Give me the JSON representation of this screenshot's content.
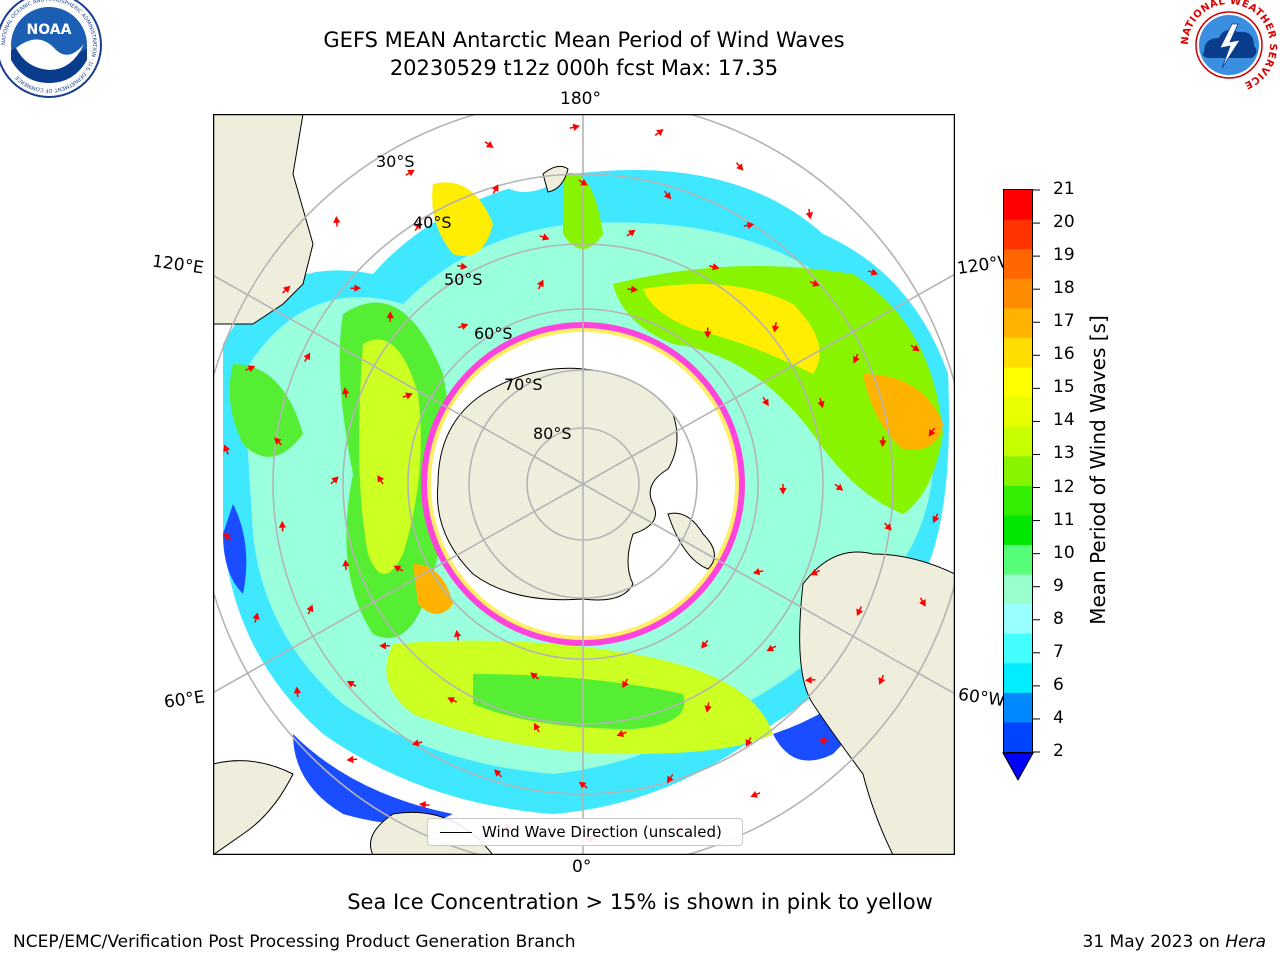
{
  "title": {
    "line1": "GEFS MEAN Antarctic Mean Period of Wind Waves",
    "line2": "20230529 t12z 000h fcst   Max: 17.35"
  },
  "logos": {
    "left": "NOAA",
    "left_ring_text": "NATIONAL OCEANIC AND ATMOSPHERIC ADMINISTRATION · U.S. DEPARTMENT OF COMMERCE",
    "right_ring_text": "NATIONAL WEATHER SERVICE"
  },
  "map": {
    "longitude_labels": {
      "top": "180°",
      "bottom": "0°",
      "upper_left": "120°E",
      "upper_right": "120°W",
      "lower_left": "60°E",
      "lower_right": "60°W"
    },
    "latitude_labels": [
      "30°S",
      "40°S",
      "50°S",
      "60°S",
      "70°S",
      "80°S"
    ],
    "colors": {
      "land": "#efeddc",
      "sea_ice": "#ff44dd",
      "ice_edge": "#ffee00",
      "arrow": "#ff0000",
      "grid": "#b4b4b4"
    }
  },
  "legend": {
    "label": "Wind Wave Direction (unscaled)"
  },
  "colorbar": {
    "label": "Mean Period of Wind Waves [s]",
    "ticks": [
      "21",
      "20",
      "19",
      "18",
      "17",
      "16",
      "15",
      "14",
      "13",
      "12",
      "11",
      "10",
      "9",
      "8",
      "7",
      "6",
      "4",
      "2"
    ],
    "colors": [
      "#ff0000",
      "#ff3300",
      "#ff6600",
      "#ff8c00",
      "#ffb200",
      "#ffdd00",
      "#ffff00",
      "#e8ff00",
      "#c6ff00",
      "#88f400",
      "#33ee00",
      "#00e600",
      "#55ff77",
      "#99ffcc",
      "#99ffff",
      "#44ffff",
      "#00eeff",
      "#0088ff",
      "#0044ff"
    ],
    "extend_color": "#0000ff"
  },
  "caption": "Sea Ice Concentration > 15% is shown in pink to yellow",
  "footer": {
    "left": "NCEP/EMC/Verification Post Processing Product Generation Branch",
    "right_date": "31 May 2023 on",
    "right_machine": "Hera"
  }
}
